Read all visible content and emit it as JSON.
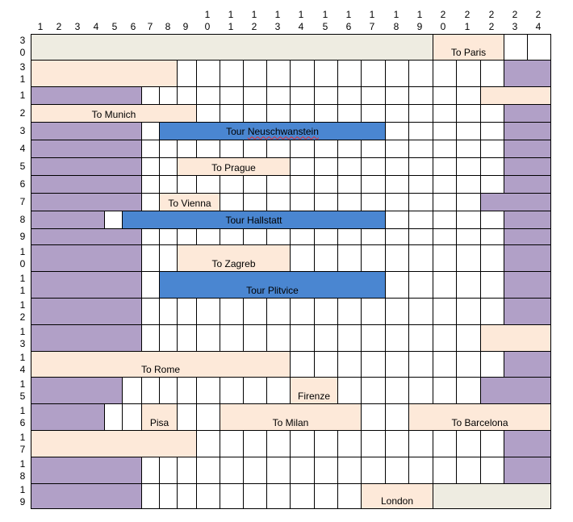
{
  "colors": {
    "purple": "#b1a0c7",
    "peach": "#fde9d9",
    "blue": "#4a86d1",
    "beige": "#eeece1",
    "grid": "#000000"
  },
  "columns": [
    "1",
    "2",
    "3",
    "4",
    "5",
    "6",
    "7",
    "8",
    "9",
    "10",
    "11",
    "12",
    "13",
    "14",
    "15",
    "16",
    "17",
    "18",
    "19",
    "20",
    "21",
    "22",
    "23",
    "24"
  ],
  "rows": [
    "30",
    "31",
    "1",
    "2",
    "3",
    "4",
    "5",
    "6",
    "7",
    "8",
    "9",
    "10",
    "11",
    "12",
    "13",
    "14",
    "15",
    "16",
    "17",
    "18",
    "19"
  ],
  "blocks": [
    {
      "id": "r30-beige-a",
      "row": 0,
      "c0": 1,
      "c1": 18,
      "color": "beige",
      "label": ""
    },
    {
      "id": "r30-paris",
      "row": 0,
      "c0": 19,
      "c1": 21,
      "color": "peach",
      "label": "To Paris"
    },
    {
      "id": "r31-peach",
      "row": 1,
      "c0": 1,
      "c1": 7,
      "color": "peach",
      "label": ""
    },
    {
      "id": "r31-purple",
      "row": 1,
      "c0": 22,
      "c1": 22,
      "color": "purple",
      "label": ""
    },
    {
      "id": "r1-purple",
      "row": 2,
      "c0": 1,
      "c1": 5,
      "color": "purple",
      "label": ""
    },
    {
      "id": "r1-peach",
      "row": 2,
      "c0": 21,
      "c1": 22,
      "color": "peach",
      "label": ""
    },
    {
      "id": "r2-munich",
      "row": 3,
      "c0": 1,
      "c1": 8,
      "color": "peach",
      "label": "To Munich"
    },
    {
      "id": "r2-purple",
      "row": 3,
      "c0": 22,
      "c1": 22,
      "color": "purple",
      "label": ""
    },
    {
      "id": "r3-purple",
      "row": 4,
      "c0": 1,
      "c1": 5,
      "color": "purple",
      "label": ""
    },
    {
      "id": "r3-tour",
      "row": 4,
      "c0": 7,
      "c1": 16,
      "color": "blue",
      "label": "Tour Neuschwanstein",
      "squiggle": true
    },
    {
      "id": "r3-purple-b",
      "row": 4,
      "c0": 22,
      "c1": 22,
      "color": "purple",
      "label": ""
    },
    {
      "id": "r4-purple",
      "row": 5,
      "c0": 1,
      "c1": 5,
      "color": "purple",
      "label": ""
    },
    {
      "id": "r4-purple-b",
      "row": 5,
      "c0": 22,
      "c1": 22,
      "color": "purple",
      "label": ""
    },
    {
      "id": "r5-purple",
      "row": 6,
      "c0": 1,
      "c1": 5,
      "color": "purple",
      "label": ""
    },
    {
      "id": "r5-prague",
      "row": 6,
      "c0": 8,
      "c1": 12,
      "color": "peach",
      "label": "To Prague"
    },
    {
      "id": "r5-purple-b",
      "row": 6,
      "c0": 22,
      "c1": 22,
      "color": "purple",
      "label": ""
    },
    {
      "id": "r6-purple",
      "row": 7,
      "c0": 1,
      "c1": 5,
      "color": "purple",
      "label": ""
    },
    {
      "id": "r6-purple-b",
      "row": 7,
      "c0": 22,
      "c1": 22,
      "color": "purple",
      "label": ""
    },
    {
      "id": "r7-purple",
      "row": 8,
      "c0": 1,
      "c1": 5,
      "color": "purple",
      "label": ""
    },
    {
      "id": "r7-vienna",
      "row": 8,
      "c0": 7,
      "c1": 9,
      "color": "peach",
      "label": "To Vienna"
    },
    {
      "id": "r7-purple-b",
      "row": 8,
      "c0": 21,
      "c1": 22,
      "color": "purple",
      "label": ""
    },
    {
      "id": "r8-purple",
      "row": 9,
      "c0": 1,
      "c1": 3,
      "color": "purple",
      "label": ""
    },
    {
      "id": "r8-tour",
      "row": 9,
      "c0": 5,
      "c1": 16,
      "color": "blue",
      "label": "Tour Hallstatt"
    },
    {
      "id": "r8-purple-b",
      "row": 9,
      "c0": 22,
      "c1": 22,
      "color": "purple",
      "label": ""
    },
    {
      "id": "r9-purple",
      "row": 10,
      "c0": 1,
      "c1": 5,
      "color": "purple",
      "label": ""
    },
    {
      "id": "r9-purple-b",
      "row": 10,
      "c0": 22,
      "c1": 22,
      "color": "purple",
      "label": ""
    },
    {
      "id": "r10-purple",
      "row": 11,
      "c0": 1,
      "c1": 5,
      "color": "purple",
      "label": ""
    },
    {
      "id": "r10-zagreb",
      "row": 11,
      "c0": 8,
      "c1": 12,
      "color": "peach",
      "label": "To Zagreb"
    },
    {
      "id": "r10-purple-b",
      "row": 11,
      "c0": 22,
      "c1": 22,
      "color": "purple",
      "label": ""
    },
    {
      "id": "r11-purple",
      "row": 12,
      "c0": 1,
      "c1": 5,
      "color": "purple",
      "label": ""
    },
    {
      "id": "r11-tour",
      "row": 12,
      "c0": 7,
      "c1": 16,
      "color": "blue",
      "label": "Tour Plitvice"
    },
    {
      "id": "r11-purple-b",
      "row": 12,
      "c0": 22,
      "c1": 22,
      "color": "purple",
      "label": ""
    },
    {
      "id": "r12-purple",
      "row": 13,
      "c0": 1,
      "c1": 5,
      "color": "purple",
      "label": ""
    },
    {
      "id": "r12-purple-b",
      "row": 13,
      "c0": 22,
      "c1": 22,
      "color": "purple",
      "label": ""
    },
    {
      "id": "r13-purple",
      "row": 14,
      "c0": 1,
      "c1": 5,
      "color": "purple",
      "label": ""
    },
    {
      "id": "r13-peach",
      "row": 14,
      "c0": 21,
      "c1": 22,
      "color": "peach",
      "label": ""
    },
    {
      "id": "r14-rome",
      "row": 15,
      "c0": 1,
      "c1": 12,
      "color": "peach",
      "label": "To Rome"
    },
    {
      "id": "r14-purple-b",
      "row": 15,
      "c0": 22,
      "c1": 22,
      "color": "purple",
      "label": ""
    },
    {
      "id": "r15-purple",
      "row": 16,
      "c0": 1,
      "c1": 4,
      "color": "purple",
      "label": ""
    },
    {
      "id": "r15-firenze",
      "row": 16,
      "c0": 13,
      "c1": 14,
      "color": "peach",
      "label": "Firenze"
    },
    {
      "id": "r15-purple-b",
      "row": 16,
      "c0": 21,
      "c1": 22,
      "color": "purple",
      "label": ""
    },
    {
      "id": "r16-purple",
      "row": 17,
      "c0": 1,
      "c1": 3,
      "color": "purple",
      "label": ""
    },
    {
      "id": "r16-pisa",
      "row": 17,
      "c0": 6,
      "c1": 7,
      "color": "peach",
      "label": "Pisa"
    },
    {
      "id": "r16-milan",
      "row": 17,
      "c0": 10,
      "c1": 15,
      "color": "peach",
      "label": "To Milan"
    },
    {
      "id": "r16-barcelona",
      "row": 17,
      "c0": 18,
      "c1": 22,
      "color": "peach",
      "label": "To Barcelona"
    },
    {
      "id": "r17-peach",
      "row": 18,
      "c0": 1,
      "c1": 8,
      "color": "peach",
      "label": ""
    },
    {
      "id": "r17-purple-b",
      "row": 18,
      "c0": 22,
      "c1": 22,
      "color": "purple",
      "label": ""
    },
    {
      "id": "r18-purple",
      "row": 19,
      "c0": 1,
      "c1": 5,
      "color": "purple",
      "label": ""
    },
    {
      "id": "r18-purple-b",
      "row": 19,
      "c0": 22,
      "c1": 22,
      "color": "purple",
      "label": ""
    },
    {
      "id": "r19-purple",
      "row": 20,
      "c0": 1,
      "c1": 5,
      "color": "purple",
      "label": ""
    },
    {
      "id": "r19-london",
      "row": 20,
      "c0": 16,
      "c1": 18,
      "color": "peach",
      "label": "London"
    },
    {
      "id": "r19-beige",
      "row": 20,
      "c0": 19,
      "c1": 22,
      "color": "beige",
      "label": ""
    }
  ]
}
